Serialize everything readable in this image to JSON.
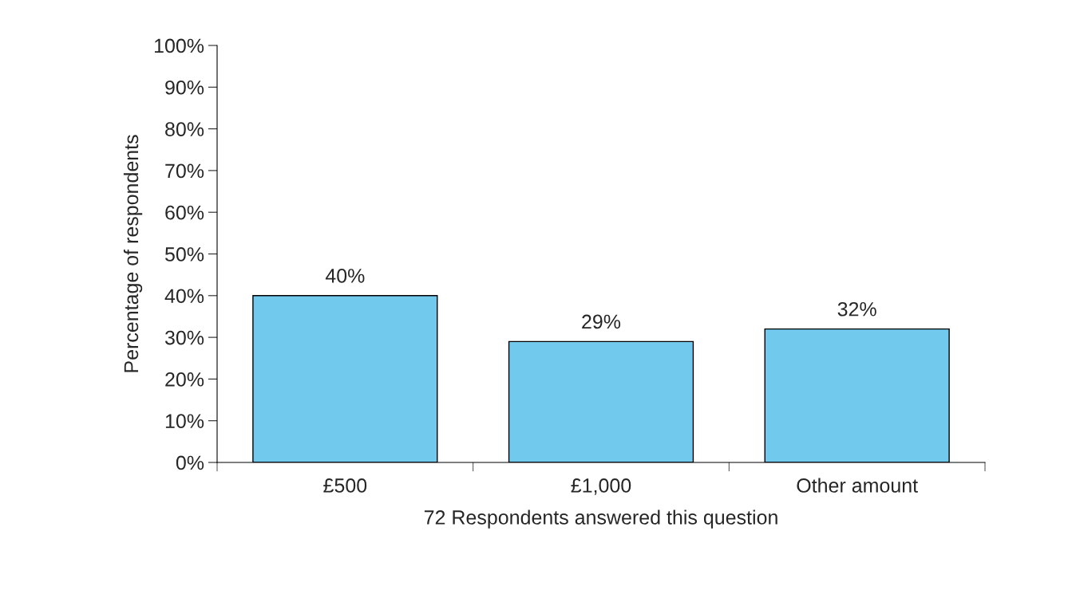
{
  "chart_data": {
    "type": "bar",
    "categories": [
      "£500",
      "£1,000",
      "Other amount"
    ],
    "values": [
      40,
      29,
      32
    ],
    "value_labels": [
      "40%",
      "29%",
      "32%"
    ],
    "color": "#72c9ee",
    "xlabel": "72 Respondents answered this question",
    "ylabel": "Percentage of respondents",
    "ylim": [
      0,
      100
    ],
    "yticks": [
      {
        "value": 0,
        "label": "0%"
      },
      {
        "value": 10,
        "label": "10%"
      },
      {
        "value": 20,
        "label": "20%"
      },
      {
        "value": 30,
        "label": "30%"
      },
      {
        "value": 40,
        "label": "40%"
      },
      {
        "value": 50,
        "label": "50%"
      },
      {
        "value": 60,
        "label": "60%"
      },
      {
        "value": 70,
        "label": "70%"
      },
      {
        "value": 80,
        "label": "80%"
      },
      {
        "value": 90,
        "label": "90%"
      },
      {
        "value": 100,
        "label": "100%"
      }
    ],
    "grid": false,
    "legend": false
  }
}
